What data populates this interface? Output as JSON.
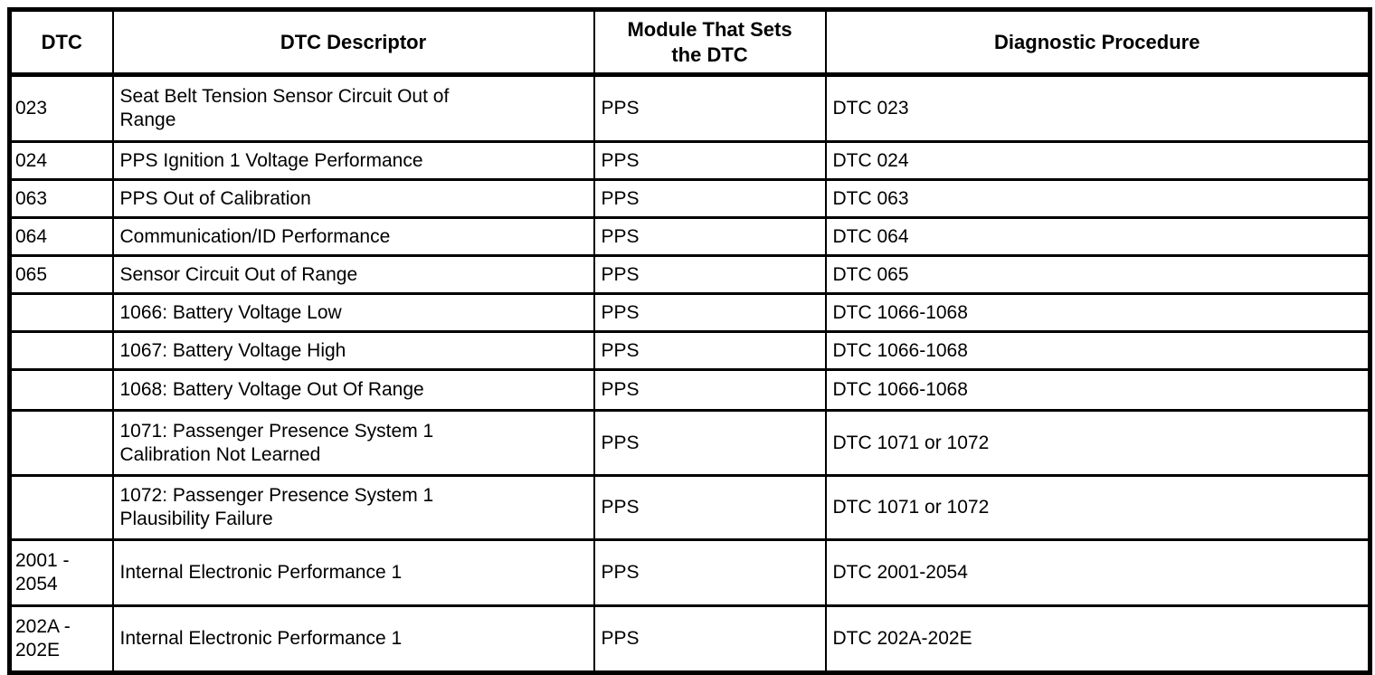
{
  "table": {
    "headers": {
      "dtc": "DTC",
      "descriptor": "DTC Descriptor",
      "module": "Module That Sets\nthe DTC",
      "procedure": "Diagnostic Procedure"
    },
    "rows": [
      {
        "dtc": "023",
        "descriptor": "Seat Belt Tension Sensor Circuit Out of\nRange",
        "module": "PPS",
        "procedure": "DTC 023"
      },
      {
        "dtc": "024",
        "descriptor": "PPS Ignition 1 Voltage Performance",
        "module": "PPS",
        "procedure": "DTC 024"
      },
      {
        "dtc": "063",
        "descriptor": "PPS Out of Calibration",
        "module": "PPS",
        "procedure": "DTC 063"
      },
      {
        "dtc": "064",
        "descriptor": "Communication/ID Performance",
        "module": "PPS",
        "procedure": "DTC 064"
      },
      {
        "dtc": "065",
        "descriptor": "Sensor Circuit Out of Range",
        "module": "PPS",
        "procedure": "DTC 065"
      },
      {
        "dtc": "",
        "descriptor": "1066: Battery Voltage Low",
        "module": "PPS",
        "procedure": "DTC 1066-1068"
      },
      {
        "dtc": "",
        "descriptor": "1067: Battery Voltage High",
        "module": "PPS",
        "procedure": "DTC 1066-1068"
      },
      {
        "dtc": "",
        "descriptor": "1068: Battery Voltage Out Of Range",
        "module": "PPS",
        "procedure": "DTC 1066-1068"
      },
      {
        "dtc": "",
        "descriptor": "1071: Passenger Presence System 1\nCalibration Not Learned",
        "module": "PPS",
        "procedure": "DTC 1071 or 1072"
      },
      {
        "dtc": "",
        "descriptor": "1072: Passenger Presence System 1\nPlausibility Failure",
        "module": "PPS",
        "procedure": "DTC 1071 or 1072"
      },
      {
        "dtc": "2001 -\n2054",
        "descriptor": "Internal Electronic Performance 1",
        "module": "PPS",
        "procedure": "DTC 2001-2054"
      },
      {
        "dtc": "202A -\n202E",
        "descriptor": "Internal Electronic Performance 1",
        "module": "PPS",
        "procedure": "DTC 202A-202E"
      }
    ],
    "colors": {
      "border": "#000000",
      "text": "#000000",
      "background": "#ffffff"
    }
  }
}
